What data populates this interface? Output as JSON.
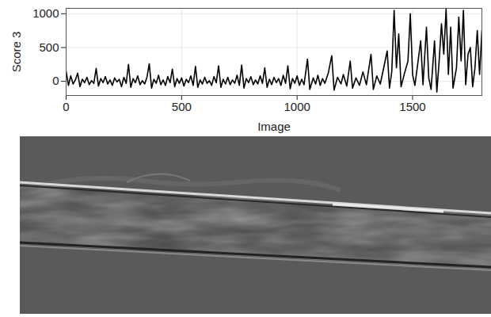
{
  "chart_data": {
    "type": "line",
    "x_label": "Image",
    "y_label": "Score 3",
    "xlim": [
      0,
      1800
    ],
    "xticks": [
      0,
      500,
      1000,
      1500
    ],
    "ylim": [
      -210,
      1080
    ],
    "yticks": [
      0,
      500,
      1000
    ],
    "grid": true,
    "color": "#000000",
    "x": [
      0,
      10,
      20,
      30,
      40,
      50,
      60,
      70,
      80,
      90,
      100,
      110,
      120,
      130,
      140,
      150,
      160,
      170,
      180,
      190,
      200,
      210,
      220,
      230,
      240,
      250,
      260,
      270,
      280,
      290,
      300,
      310,
      320,
      330,
      340,
      350,
      360,
      370,
      380,
      390,
      400,
      410,
      420,
      430,
      440,
      450,
      460,
      470,
      480,
      490,
      500,
      510,
      520,
      530,
      540,
      550,
      560,
      570,
      580,
      590,
      600,
      610,
      620,
      630,
      640,
      650,
      660,
      670,
      680,
      690,
      700,
      710,
      720,
      730,
      740,
      750,
      760,
      770,
      780,
      790,
      800,
      810,
      820,
      830,
      840,
      850,
      860,
      870,
      880,
      890,
      900,
      910,
      920,
      930,
      940,
      950,
      960,
      970,
      980,
      990,
      1000,
      1010,
      1020,
      1030,
      1045,
      1055,
      1070,
      1080,
      1090,
      1100,
      1110,
      1120,
      1135,
      1150,
      1160,
      1175,
      1190,
      1200,
      1215,
      1230,
      1240,
      1255,
      1270,
      1285,
      1300,
      1320,
      1330,
      1345,
      1360,
      1375,
      1390,
      1400,
      1410,
      1420,
      1430,
      1440,
      1450,
      1465,
      1480,
      1490,
      1500,
      1510,
      1520,
      1535,
      1545,
      1560,
      1570,
      1580,
      1595,
      1605,
      1615,
      1625,
      1635,
      1645,
      1655,
      1665,
      1675,
      1690,
      1700,
      1710,
      1720,
      1730,
      1740,
      1750,
      1760,
      1770,
      1780,
      1790,
      1800
    ],
    "values": [
      150,
      -60,
      80,
      -40,
      20,
      120,
      -80,
      30,
      -20,
      60,
      -50,
      10,
      -30,
      190,
      -70,
      40,
      -20,
      70,
      -40,
      20,
      -60,
      50,
      -10,
      30,
      -80,
      60,
      -30,
      250,
      -90,
      40,
      -20,
      80,
      -50,
      10,
      -40,
      60,
      260,
      -100,
      30,
      -30,
      90,
      -50,
      20,
      -60,
      70,
      -20,
      180,
      -80,
      40,
      -30,
      50,
      -70,
      30,
      -20,
      80,
      -60,
      220,
      -90,
      20,
      -40,
      60,
      -30,
      10,
      -60,
      70,
      -20,
      230,
      -90,
      30,
      -40,
      60,
      -50,
      20,
      -30,
      90,
      -60,
      240,
      -100,
      40,
      -20,
      70,
      -50,
      20,
      -40,
      80,
      -30,
      200,
      -90,
      30,
      -50,
      60,
      -20,
      40,
      -60,
      90,
      -30,
      230,
      -110,
      40,
      -30,
      80,
      -60,
      30,
      -50,
      330,
      -120,
      50,
      -40,
      90,
      -60,
      40,
      -30,
      120,
      380,
      -130,
      60,
      -40,
      100,
      -70,
      300,
      -100,
      50,
      -60,
      140,
      -50,
      400,
      -120,
      80,
      -40,
      200,
      450,
      -100,
      150,
      1050,
      200,
      700,
      -80,
      120,
      300,
      1000,
      100,
      -60,
      200,
      600,
      -50,
      800,
      50,
      -120,
      600,
      -160,
      300,
      850,
      400,
      1070,
      100,
      800,
      -100,
      200,
      950,
      300,
      1050,
      -50,
      400,
      500,
      -80,
      200,
      750,
      100,
      750
    ]
  }
}
